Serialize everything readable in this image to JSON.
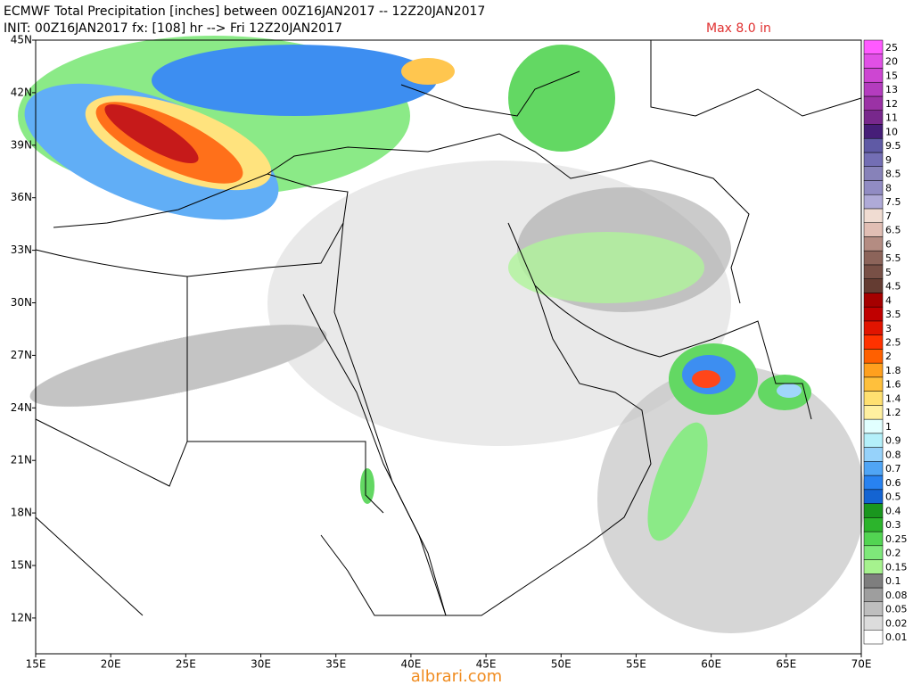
{
  "header": {
    "line1": "ECMWF Total Precipitation [inches] between 00Z16JAN2017 -- 12Z20JAN2017",
    "line2": "INIT: 00Z16JAN2017 fx: [108] hr --> Fri 12Z20JAN2017",
    "max_label": "Max 8.0 in"
  },
  "map": {
    "lat_labels": [
      "45N",
      "42N",
      "39N",
      "36N",
      "33N",
      "30N",
      "27N",
      "24N",
      "21N",
      "18N",
      "15N",
      "12N"
    ],
    "lon_labels": [
      "15E",
      "20E",
      "25E",
      "30E",
      "35E",
      "40E",
      "45E",
      "50E",
      "55E",
      "60E",
      "65E",
      "70E"
    ]
  },
  "colorbar": {
    "levels": [
      {
        "label": "0.01",
        "color": "#ffffff"
      },
      {
        "label": "0.02",
        "color": "#dcdcdc"
      },
      {
        "label": "0.05",
        "color": "#bebebe"
      },
      {
        "label": "0.08",
        "color": "#9e9e9e"
      },
      {
        "label": "0.1",
        "color": "#7e7e7e"
      },
      {
        "label": "0.15",
        "color": "#a6f28e"
      },
      {
        "label": "0.2",
        "color": "#7ee87a"
      },
      {
        "label": "0.25",
        "color": "#52d452"
      },
      {
        "label": "0.3",
        "color": "#2cb42c"
      },
      {
        "label": "0.4",
        "color": "#1a961e"
      },
      {
        "label": "0.5",
        "color": "#1464d2"
      },
      {
        "label": "0.6",
        "color": "#2882f0"
      },
      {
        "label": "0.7",
        "color": "#50a5f5"
      },
      {
        "label": "0.8",
        "color": "#96d2fa"
      },
      {
        "label": "0.9",
        "color": "#b4f0fa"
      },
      {
        "label": "1",
        "color": "#e1ffff"
      },
      {
        "label": "1.2",
        "color": "#fff0a0"
      },
      {
        "label": "1.4",
        "color": "#ffe070"
      },
      {
        "label": "1.6",
        "color": "#ffc03c"
      },
      {
        "label": "1.8",
        "color": "#ffa01e"
      },
      {
        "label": "2",
        "color": "#ff6000"
      },
      {
        "label": "2.5",
        "color": "#ff3200"
      },
      {
        "label": "3",
        "color": "#e11400"
      },
      {
        "label": "3.5",
        "color": "#c00000"
      },
      {
        "label": "4",
        "color": "#a50000"
      },
      {
        "label": "4.5",
        "color": "#643c32"
      },
      {
        "label": "5",
        "color": "#785046"
      },
      {
        "label": "5.5",
        "color": "#8c645a"
      },
      {
        "label": "6",
        "color": "#b48c82"
      },
      {
        "label": "6.5",
        "color": "#e1beb4"
      },
      {
        "label": "7",
        "color": "#f0dcd2"
      },
      {
        "label": "7.5",
        "color": "#afaad7"
      },
      {
        "label": "8",
        "color": "#918cc3"
      },
      {
        "label": "8.5",
        "color": "#8782b9"
      },
      {
        "label": "9",
        "color": "#736eb4"
      },
      {
        "label": "9.5",
        "color": "#5f5aa5"
      },
      {
        "label": "10",
        "color": "#461e78"
      },
      {
        "label": "11",
        "color": "#78288c"
      },
      {
        "label": "12",
        "color": "#9b32a5"
      },
      {
        "label": "13",
        "color": "#b43cbe"
      },
      {
        "label": "15",
        "color": "#cd46d2"
      },
      {
        "label": "20",
        "color": "#e150e6"
      },
      {
        "label": "25",
        "color": "#ff5aff"
      }
    ]
  },
  "watermark": "albrari.com"
}
